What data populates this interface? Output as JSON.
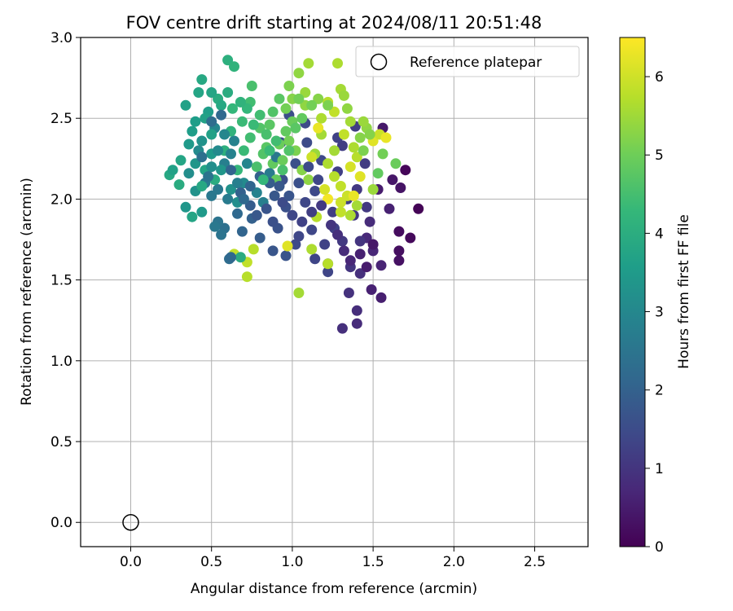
{
  "chart_data": {
    "type": "scatter",
    "title": "FOV centre drift starting at 2024/08/11 20:51:48",
    "xlabel": "Angular distance from reference (arcmin)",
    "ylabel": "Rotation from reference (arcmin)",
    "xlim": [
      -0.31,
      2.83
    ],
    "ylim": [
      -0.15,
      3.0
    ],
    "xticks": [
      "0.0",
      "0.5",
      "1.0",
      "1.5",
      "2.0",
      "2.5"
    ],
    "xtick_values": [
      0,
      0.5,
      1.0,
      1.5,
      2.0,
      2.5
    ],
    "yticks": [
      "0.0",
      "0.5",
      "1.0",
      "1.5",
      "2.0",
      "2.5",
      "3.0"
    ],
    "ytick_values": [
      0,
      0.5,
      1.0,
      1.5,
      2.0,
      2.5,
      3.0
    ],
    "grid": true,
    "legend": {
      "placement": "top-right",
      "entries": [
        "Reference platepar"
      ]
    },
    "reference_point": {
      "x": 0.0,
      "y": 0.0
    },
    "colorbar": {
      "label": "Hours from first FF file",
      "range": [
        0,
        6.5
      ],
      "ticks": [
        "0",
        "1",
        "2",
        "3",
        "4",
        "5",
        "6"
      ],
      "tick_values": [
        0,
        1,
        2,
        3,
        4,
        5,
        6
      ],
      "colormap": [
        "#440154",
        "#482878",
        "#3e4989",
        "#31688e",
        "#26828e",
        "#1f9e89",
        "#35b779",
        "#6ece58",
        "#b5de2b",
        "#fde725"
      ]
    },
    "points": [
      [
        1.78,
        1.94,
        0.05
      ],
      [
        1.7,
        2.18,
        0.1
      ],
      [
        1.73,
        1.76,
        0.15
      ],
      [
        1.66,
        1.8,
        0.2
      ],
      [
        1.66,
        1.68,
        0.25
      ],
      [
        1.66,
        1.62,
        0.3
      ],
      [
        1.67,
        2.07,
        0.35
      ],
      [
        1.62,
        2.12,
        0.4
      ],
      [
        1.56,
        2.44,
        0.45
      ],
      [
        1.53,
        2.06,
        0.5
      ],
      [
        1.55,
        1.39,
        0.55
      ],
      [
        1.49,
        1.44,
        0.6
      ],
      [
        1.55,
        1.59,
        0.65
      ],
      [
        1.5,
        1.68,
        0.7
      ],
      [
        1.46,
        1.76,
        0.75
      ],
      [
        1.4,
        1.23,
        0.8
      ],
      [
        1.4,
        1.31,
        0.85
      ],
      [
        1.31,
        1.2,
        0.9
      ],
      [
        1.35,
        1.42,
        0.95
      ],
      [
        1.36,
        1.58,
        1.0
      ],
      [
        1.42,
        1.74,
        1.0
      ],
      [
        1.38,
        1.9,
        1.05
      ],
      [
        1.46,
        1.95,
        1.1
      ],
      [
        1.4,
        2.06,
        1.1
      ],
      [
        1.45,
        2.22,
        1.15
      ],
      [
        1.39,
        2.45,
        1.2
      ],
      [
        1.31,
        2.33,
        1.2
      ],
      [
        1.28,
        2.17,
        1.25
      ],
      [
        1.34,
        2.0,
        1.25
      ],
      [
        1.26,
        1.82,
        1.3
      ],
      [
        1.22,
        1.6,
        1.3
      ],
      [
        1.22,
        1.55,
        1.35
      ],
      [
        1.14,
        1.63,
        1.35
      ],
      [
        1.12,
        1.81,
        1.4
      ],
      [
        1.08,
        1.98,
        1.4
      ],
      [
        1.14,
        2.05,
        1.45
      ],
      [
        1.18,
        2.24,
        1.45
      ],
      [
        1.09,
        2.35,
        1.5
      ],
      [
        1.08,
        2.47,
        1.5
      ],
      [
        0.98,
        2.52,
        1.55
      ],
      [
        0.93,
        2.35,
        1.55
      ],
      [
        0.94,
        2.12,
        1.6
      ],
      [
        0.96,
        1.95,
        1.6
      ],
      [
        0.91,
        1.82,
        1.65
      ],
      [
        0.96,
        1.65,
        1.7
      ],
      [
        0.88,
        1.68,
        1.75
      ],
      [
        1.02,
        1.72,
        1.5
      ],
      [
        1.04,
        1.77,
        1.4
      ],
      [
        1.25,
        1.92,
        1.2
      ],
      [
        1.31,
        1.74,
        1.1
      ],
      [
        1.42,
        1.54,
        0.9
      ],
      [
        1.48,
        1.86,
        0.8
      ],
      [
        1.6,
        1.94,
        0.6
      ],
      [
        1.28,
        2.38,
        1.3
      ],
      [
        1.02,
        2.22,
        1.6
      ],
      [
        0.89,
        2.02,
        1.8
      ],
      [
        0.8,
        1.76,
        1.9
      ],
      [
        0.75,
        1.88,
        2.0
      ],
      [
        0.69,
        1.8,
        2.1
      ],
      [
        0.66,
        1.91,
        2.2
      ],
      [
        0.61,
        1.63,
        2.3
      ],
      [
        0.58,
        1.82,
        2.4
      ],
      [
        0.54,
        1.86,
        2.5
      ],
      [
        0.5,
        2.02,
        2.6
      ],
      [
        0.46,
        2.1,
        2.7
      ],
      [
        0.58,
        2.22,
        2.8
      ],
      [
        0.64,
        2.36,
        2.9
      ],
      [
        0.52,
        2.44,
        3.0
      ],
      [
        0.42,
        2.3,
        3.1
      ],
      [
        0.36,
        2.16,
        3.2
      ],
      [
        0.4,
        2.05,
        3.3
      ],
      [
        0.34,
        1.95,
        3.4
      ],
      [
        0.44,
        1.92,
        3.5
      ],
      [
        0.38,
        2.42,
        3.6
      ],
      [
        0.34,
        2.58,
        3.7
      ],
      [
        0.42,
        2.66,
        3.8
      ],
      [
        0.44,
        2.74,
        3.9
      ],
      [
        0.54,
        2.62,
        4.0
      ],
      [
        0.6,
        2.86,
        4.1
      ],
      [
        0.64,
        2.82,
        4.2
      ],
      [
        0.63,
        2.56,
        4.3
      ],
      [
        0.69,
        2.48,
        4.4
      ],
      [
        0.74,
        2.6,
        4.5
      ],
      [
        0.75,
        2.7,
        4.6
      ],
      [
        0.8,
        2.44,
        4.7
      ],
      [
        0.84,
        2.32,
        4.8
      ],
      [
        0.88,
        2.22,
        4.9
      ],
      [
        0.92,
        2.34,
        5.0
      ],
      [
        0.96,
        2.56,
        5.1
      ],
      [
        0.98,
        2.7,
        5.2
      ],
      [
        1.0,
        2.62,
        5.3
      ],
      [
        1.04,
        2.78,
        5.4
      ],
      [
        1.08,
        2.66,
        5.5
      ],
      [
        1.1,
        2.84,
        5.6
      ],
      [
        1.18,
        2.5,
        5.7
      ],
      [
        1.22,
        2.6,
        5.8
      ],
      [
        1.26,
        2.54,
        5.9
      ],
      [
        1.3,
        2.68,
        5.6
      ],
      [
        1.32,
        2.64,
        5.5
      ],
      [
        1.34,
        2.56,
        5.4
      ],
      [
        1.28,
        2.84,
        5.7
      ],
      [
        1.36,
        2.48,
        5.6
      ],
      [
        1.4,
        2.26,
        5.8
      ],
      [
        1.42,
        2.38,
        5.3
      ],
      [
        1.44,
        2.3,
        5.2
      ],
      [
        1.46,
        2.44,
        5.4
      ],
      [
        1.5,
        2.36,
        6.2
      ],
      [
        1.54,
        2.4,
        6.0
      ],
      [
        1.56,
        2.28,
        5.1
      ],
      [
        1.58,
        2.38,
        6.3
      ],
      [
        1.53,
        2.16,
        4.9
      ],
      [
        1.64,
        2.22,
        5.0
      ],
      [
        1.5,
        2.06,
        5.5
      ],
      [
        1.4,
        1.96,
        5.6
      ],
      [
        1.36,
        1.9,
        5.7
      ],
      [
        1.3,
        1.98,
        6.0
      ],
      [
        1.22,
        2.0,
        6.4
      ],
      [
        1.2,
        2.06,
        6.1
      ],
      [
        1.15,
        1.89,
        5.8
      ],
      [
        1.22,
        1.6,
        5.8
      ],
      [
        1.12,
        1.69,
        5.7
      ],
      [
        1.04,
        1.42,
        5.6
      ],
      [
        0.97,
        1.71,
        6.2
      ],
      [
        0.72,
        1.52,
        5.8
      ],
      [
        0.72,
        1.61,
        5.9
      ],
      [
        0.76,
        1.69,
        5.8
      ],
      [
        0.64,
        1.66,
        5.9
      ],
      [
        0.68,
        1.64,
        4.0
      ],
      [
        0.62,
        1.64,
        2.2
      ],
      [
        0.56,
        1.78,
        2.5
      ],
      [
        0.52,
        1.83,
        2.6
      ],
      [
        0.38,
        1.89,
        3.8
      ],
      [
        0.3,
        2.09,
        4.0
      ],
      [
        0.24,
        2.15,
        3.9
      ],
      [
        0.31,
        2.24,
        3.8
      ],
      [
        0.26,
        2.18,
        3.7
      ],
      [
        0.5,
        2.28,
        3.5
      ],
      [
        0.56,
        2.18,
        3.4
      ],
      [
        0.62,
        2.06,
        3.3
      ],
      [
        0.66,
        1.98,
        3.2
      ],
      [
        0.7,
        2.1,
        3.1
      ],
      [
        0.72,
        2.22,
        3.0
      ],
      [
        0.78,
        2.04,
        2.9
      ],
      [
        0.82,
        1.98,
        2.8
      ],
      [
        0.86,
        2.16,
        2.7
      ],
      [
        0.9,
        2.26,
        2.6
      ],
      [
        0.48,
        2.54,
        3.6
      ],
      [
        0.5,
        2.4,
        3.7
      ],
      [
        0.46,
        2.18,
        3.8
      ],
      [
        0.44,
        2.08,
        3.9
      ],
      [
        0.52,
        2.12,
        4.0
      ],
      [
        0.58,
        2.3,
        4.1
      ],
      [
        0.62,
        2.42,
        4.2
      ],
      [
        0.66,
        2.18,
        4.3
      ],
      [
        0.7,
        2.3,
        4.4
      ],
      [
        0.74,
        2.38,
        4.5
      ],
      [
        0.78,
        2.2,
        4.6
      ],
      [
        0.82,
        2.28,
        4.7
      ],
      [
        0.86,
        2.46,
        4.8
      ],
      [
        0.9,
        2.12,
        4.9
      ],
      [
        0.94,
        2.24,
        5.0
      ],
      [
        0.98,
        2.36,
        5.1
      ],
      [
        1.02,
        2.3,
        5.2
      ],
      [
        1.06,
        2.18,
        5.3
      ],
      [
        1.1,
        2.12,
        5.4
      ],
      [
        1.14,
        2.28,
        5.5
      ],
      [
        1.18,
        2.4,
        5.6
      ],
      [
        1.22,
        2.22,
        5.7
      ],
      [
        1.26,
        2.14,
        5.8
      ],
      [
        1.3,
        2.08,
        5.9
      ],
      [
        1.16,
        2.44,
        6.3
      ],
      [
        1.12,
        2.26,
        6.0
      ],
      [
        1.08,
        2.58,
        5.4
      ],
      [
        1.04,
        2.62,
        5.1
      ],
      [
        1.0,
        2.48,
        5.0
      ],
      [
        0.96,
        2.42,
        4.9
      ],
      [
        0.92,
        2.62,
        4.8
      ],
      [
        0.88,
        2.54,
        4.7
      ],
      [
        0.84,
        2.4,
        4.6
      ],
      [
        0.8,
        2.52,
        4.5
      ],
      [
        0.76,
        2.46,
        4.4
      ],
      [
        0.72,
        2.56,
        4.3
      ],
      [
        0.68,
        2.6,
        4.2
      ],
      [
        0.6,
        2.66,
        4.0
      ],
      [
        0.56,
        2.58,
        3.9
      ],
      [
        0.5,
        2.66,
        3.8
      ],
      [
        0.46,
        2.5,
        3.7
      ],
      [
        0.4,
        2.48,
        3.6
      ],
      [
        0.36,
        2.34,
        3.5
      ],
      [
        0.4,
        2.22,
        3.4
      ],
      [
        0.44,
        2.36,
        3.3
      ],
      [
        0.5,
        2.2,
        3.2
      ],
      [
        0.54,
        2.3,
        3.1
      ],
      [
        0.58,
        2.4,
        3.0
      ],
      [
        0.62,
        2.28,
        2.9
      ],
      [
        0.66,
        2.1,
        2.8
      ],
      [
        0.6,
        2.0,
        2.7
      ],
      [
        0.54,
        2.06,
        2.6
      ],
      [
        0.48,
        2.14,
        2.5
      ],
      [
        0.44,
        2.26,
        2.4
      ],
      [
        0.5,
        2.48,
        2.3
      ],
      [
        0.56,
        2.52,
        2.2
      ],
      [
        0.62,
        2.18,
        2.1
      ],
      [
        0.68,
        2.04,
        2.0
      ],
      [
        0.74,
        1.96,
        1.9
      ],
      [
        0.78,
        1.9,
        1.8
      ],
      [
        0.84,
        1.94,
        1.7
      ],
      [
        0.88,
        1.86,
        1.6
      ],
      [
        0.94,
        1.98,
        1.5
      ],
      [
        1.0,
        1.9,
        1.4
      ],
      [
        1.06,
        1.86,
        1.3
      ],
      [
        1.12,
        1.92,
        1.2
      ],
      [
        1.18,
        1.96,
        1.1
      ],
      [
        1.24,
        1.84,
        1.0
      ],
      [
        1.28,
        1.78,
        0.9
      ],
      [
        1.32,
        1.68,
        0.8
      ],
      [
        1.36,
        1.62,
        0.7
      ],
      [
        1.42,
        1.66,
        0.6
      ],
      [
        1.46,
        1.58,
        0.5
      ],
      [
        1.5,
        1.72,
        0.4
      ],
      [
        1.2,
        1.72,
        1.3
      ],
      [
        1.16,
        2.12,
        1.4
      ],
      [
        1.1,
        2.2,
        1.5
      ],
      [
        1.04,
        2.1,
        1.6
      ],
      [
        0.98,
        2.02,
        1.7
      ],
      [
        0.92,
        2.08,
        1.8
      ],
      [
        0.86,
        2.1,
        1.9
      ],
      [
        0.8,
        2.14,
        2.0
      ],
      [
        0.74,
        2.08,
        2.1
      ],
      [
        0.7,
        2.0,
        2.2
      ],
      [
        1.26,
        2.3,
        5.6
      ],
      [
        1.32,
        2.4,
        5.9
      ],
      [
        1.36,
        2.2,
        6.1
      ],
      [
        1.38,
        2.32,
        5.7
      ],
      [
        1.42,
        2.14,
        6.2
      ],
      [
        1.44,
        2.48,
        5.5
      ],
      [
        1.48,
        2.4,
        5.3
      ],
      [
        1.34,
        2.02,
        6.0
      ],
      [
        1.3,
        1.92,
        5.9
      ],
      [
        1.38,
        2.02,
        6.3
      ],
      [
        1.22,
        2.58,
        5.2
      ],
      [
        1.16,
        2.62,
        5.3
      ],
      [
        1.12,
        2.58,
        5.1
      ],
      [
        1.06,
        2.5,
        4.9
      ],
      [
        1.02,
        2.44,
        4.8
      ],
      [
        0.98,
        2.3,
        4.7
      ],
      [
        0.94,
        2.18,
        4.6
      ],
      [
        0.9,
        2.36,
        4.5
      ],
      [
        0.86,
        2.3,
        4.4
      ],
      [
        0.82,
        2.12,
        4.3
      ]
    ]
  }
}
